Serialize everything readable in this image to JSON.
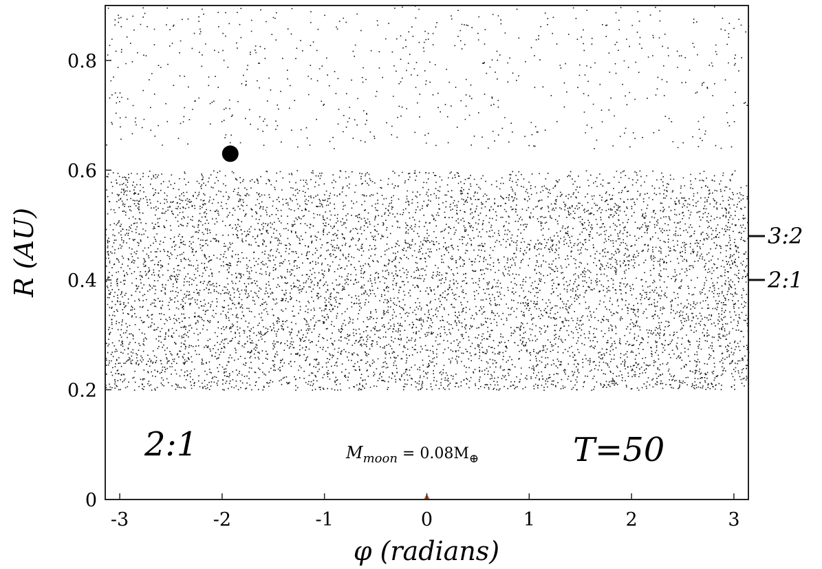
{
  "chart_data": {
    "type": "scatter",
    "title": "",
    "xlabel": "φ (radians)",
    "ylabel": "R (AU)",
    "xlim": [
      -3.1416,
      3.1416
    ],
    "ylim": [
      0,
      0.9
    ],
    "xticks": [
      "-3",
      "-2",
      "-1",
      "0",
      "1",
      "2",
      "3"
    ],
    "yticks": [
      "0",
      "0.2",
      "0.4",
      "0.6",
      "0.8"
    ],
    "grid": false,
    "particles": {
      "dense_band_r_range": [
        0.2,
        0.6
      ],
      "sparse_band_r_range": [
        0.6,
        0.9
      ],
      "marker_color": "#111111"
    },
    "moon": {
      "phi": -1.92,
      "r": 0.63,
      "color": "#000000"
    },
    "central_marker": {
      "phi": 0.0,
      "r": 0.0,
      "color": "#d9541e"
    },
    "resonances": [
      {
        "label": "3:2",
        "r": 0.48
      },
      {
        "label": "2:1",
        "r": 0.4
      }
    ],
    "annotations": {
      "resonance_case": "2:1",
      "mass_label": "M",
      "mass_sub": "moon",
      "mass_value": " = 0.08M",
      "mass_sub2": "⊕",
      "time_label": "T=50"
    }
  }
}
